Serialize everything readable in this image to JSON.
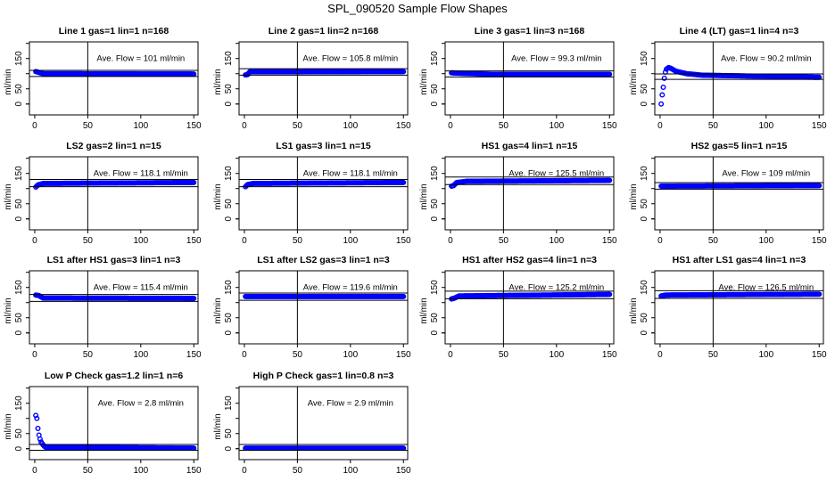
{
  "chart_data": {
    "type": "scatter",
    "title": "SPL_090520  Sample Flow Shapes",
    "point_color": "#0000ff",
    "ylabel": "ml/min",
    "xlim": [
      -5,
      154
    ],
    "ylim": [
      -36,
      205
    ],
    "x_ticks": [
      "0",
      "50",
      "100",
      "150"
    ],
    "y_ticks": [
      "0",
      "50",
      "150"
    ],
    "reference_x": 50,
    "ave_prefix": "Ave. Flow = ",
    "ave_unit": "ml/min",
    "panels": [
      {
        "title": "Line 1 gas=1 lin=1 n=168",
        "ave": "101",
        "band": [
          90.9,
          111.1
        ],
        "points": [
          [
            1,
            107
          ],
          [
            3,
            105
          ],
          [
            8,
            100
          ],
          [
            150,
            99
          ]
        ]
      },
      {
        "title": "Line 2 gas=1 lin=2 n=168",
        "ave": "105.8",
        "band": [
          95.2,
          116.4
        ],
        "points": [
          [
            1,
            96
          ],
          [
            3,
            97
          ],
          [
            5,
            106
          ],
          [
            150,
            107
          ]
        ]
      },
      {
        "title": "Line 3 gas=1 lin=3 n=168",
        "ave": "99.3",
        "band": [
          89.4,
          109.2
        ],
        "points": [
          [
            1,
            103
          ],
          [
            5,
            102
          ],
          [
            40,
            98
          ],
          [
            150,
            98
          ]
        ]
      },
      {
        "title": "Line 4 (LT) gas=1 lin=4 n=3",
        "ave": "90.2",
        "band": [
          81.2,
          99.2
        ],
        "points": [
          [
            1,
            0
          ],
          [
            2,
            30
          ],
          [
            3,
            55
          ],
          [
            4,
            85
          ],
          [
            5,
            105
          ],
          [
            6,
            115
          ],
          [
            8,
            120
          ],
          [
            10,
            118
          ],
          [
            15,
            108
          ],
          [
            25,
            100
          ],
          [
            40,
            95
          ],
          [
            150,
            88
          ]
        ]
      },
      {
        "title": "LS2 gas=2 lin=1 n=15",
        "ave": "118.1",
        "band": [
          106.3,
          129.9
        ],
        "points": [
          [
            1,
            105
          ],
          [
            3,
            112
          ],
          [
            8,
            117
          ],
          [
            150,
            120
          ]
        ]
      },
      {
        "title": "LS1 gas=3 lin=1 n=15",
        "ave": "118.1",
        "band": [
          106.3,
          129.9
        ],
        "points": [
          [
            1,
            106
          ],
          [
            3,
            113
          ],
          [
            8,
            117
          ],
          [
            150,
            120
          ]
        ]
      },
      {
        "title": "HS1 gas=4 lin=1 n=15",
        "ave": "125.5",
        "band": [
          113,
          138
        ],
        "points": [
          [
            1,
            108
          ],
          [
            3,
            110
          ],
          [
            6,
            120
          ],
          [
            15,
            124
          ],
          [
            150,
            127
          ]
        ]
      },
      {
        "title": "HS2 gas=5 lin=1 n=15",
        "ave": "109",
        "band": [
          98.1,
          119.9
        ],
        "points": [
          [
            1,
            108
          ],
          [
            150,
            110
          ]
        ]
      },
      {
        "title": "LS1 after HS1 gas=3 lin=1 n=3",
        "ave": "115.4",
        "band": [
          103.9,
          126.9
        ],
        "points": [
          [
            1,
            125
          ],
          [
            4,
            123
          ],
          [
            8,
            115
          ],
          [
            150,
            114
          ]
        ]
      },
      {
        "title": "LS1 after LS2 gas=3 lin=1 n=3",
        "ave": "119.6",
        "band": [
          107.6,
          131.6
        ],
        "points": [
          [
            1,
            120
          ],
          [
            150,
            120
          ]
        ]
      },
      {
        "title": "HS1 after HS2 gas=4 lin=1 n=3",
        "ave": "125.2",
        "band": [
          112.7,
          137.7
        ],
        "points": [
          [
            1,
            112
          ],
          [
            4,
            115
          ],
          [
            8,
            122
          ],
          [
            150,
            127
          ]
        ]
      },
      {
        "title": "HS1 after LS1 gas=4 lin=1 n=3",
        "ave": "126.5",
        "band": [
          113.9,
          139.2
        ],
        "points": [
          [
            1,
            122
          ],
          [
            5,
            125
          ],
          [
            150,
            128
          ]
        ]
      },
      {
        "title": "Low P Check gas=1.2 lin=1 n=6",
        "ave": "2.8",
        "band": [
          -5,
          14
        ],
        "points": [
          [
            1,
            110
          ],
          [
            2,
            100
          ],
          [
            3,
            67
          ],
          [
            4,
            45
          ],
          [
            5,
            32
          ],
          [
            6,
            22
          ],
          [
            8,
            12
          ],
          [
            10,
            5
          ],
          [
            150,
            2
          ]
        ]
      },
      {
        "title": "High P Check gas=1 lin=0.8 n=3",
        "ave": "2.9",
        "band": [
          -5,
          14
        ],
        "points": [
          [
            1,
            2
          ],
          [
            150,
            2
          ]
        ]
      }
    ]
  }
}
